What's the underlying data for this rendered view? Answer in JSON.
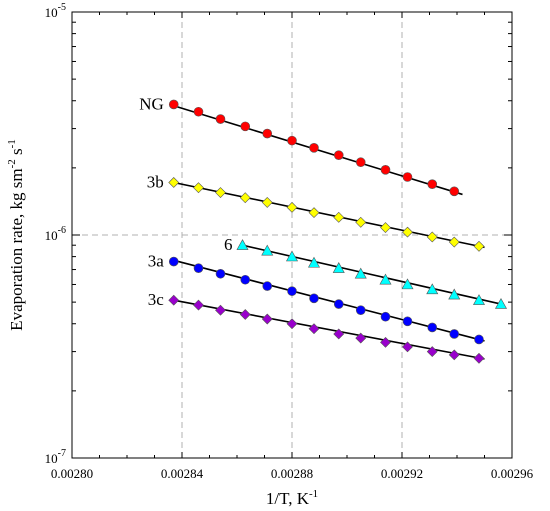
{
  "chart_data": {
    "type": "scatter",
    "xlabel": "1/T, K",
    "xlabel_sup": "-1",
    "ylabel": "Evaporation rate, kg sm",
    "ylabel_sup1": "-2",
    "ylabel_mid": " s",
    "ylabel_sup2": "-1",
    "xlim": [
      0.0028,
      0.00296
    ],
    "ylim": [
      1e-07,
      1e-05
    ],
    "y_scale": "log",
    "grid": true,
    "x_ticks": [
      {
        "value": 0.0028,
        "label": "0.00280"
      },
      {
        "value": 0.00284,
        "label": "0.00284"
      },
      {
        "value": 0.00288,
        "label": "0.00288"
      },
      {
        "value": 0.00292,
        "label": "0.00292"
      },
      {
        "value": 0.00296,
        "label": "0.00296"
      }
    ],
    "y_ticks": [
      {
        "value": 1e-07,
        "base": "10",
        "exp": "-7"
      },
      {
        "value": 1e-06,
        "base": "10",
        "exp": "-6"
      },
      {
        "value": 1e-05,
        "base": "10",
        "exp": "-5"
      }
    ],
    "series": [
      {
        "name": "NG",
        "marker": "circle",
        "color": "#ff0000",
        "x": [
          0.002837,
          0.002846,
          0.002854,
          0.002863,
          0.002871,
          0.00288,
          0.002888,
          0.002897,
          0.002905,
          0.002914,
          0.002922,
          0.002931,
          0.002939
        ],
        "y": [
          3.85e-06,
          3.57e-06,
          3.31e-06,
          3.07e-06,
          2.85e-06,
          2.65e-06,
          2.46e-06,
          2.28e-06,
          2.12e-06,
          1.96e-06,
          1.82e-06,
          1.69e-06,
          1.57e-06
        ],
        "fit": {
          "x": [
            0.002837,
            0.002942
          ],
          "y": [
            3.8e-06,
            1.52e-06
          ]
        }
      },
      {
        "name": "3b",
        "marker": "diamond",
        "color": "#ffff00",
        "x": [
          0.002837,
          0.002846,
          0.002854,
          0.002863,
          0.002871,
          0.00288,
          0.002888,
          0.002897,
          0.002905,
          0.002914,
          0.002922,
          0.002931,
          0.002939,
          0.002948
        ],
        "y": [
          1.72e-06,
          1.63e-06,
          1.55e-06,
          1.47e-06,
          1.4e-06,
          1.33e-06,
          1.26e-06,
          1.2e-06,
          1.14e-06,
          1.08e-06,
          1.03e-06,
          9.8e-07,
          9.3e-07,
          8.9e-07
        ],
        "fit": {
          "x": [
            0.002837,
            0.00295
          ],
          "y": [
            1.72e-06,
            8.8e-07
          ]
        }
      },
      {
        "name": "6",
        "marker": "triangle",
        "color": "#00ffff",
        "x": [
          0.002862,
          0.002871,
          0.00288,
          0.002888,
          0.002897,
          0.002905,
          0.002914,
          0.002922,
          0.002931,
          0.002939,
          0.002948,
          0.002956
        ],
        "y": [
          9e-07,
          8.5e-07,
          8e-07,
          7.5e-07,
          7.1e-07,
          6.7e-07,
          6.3e-07,
          6e-07,
          5.7e-07,
          5.4e-07,
          5.1e-07,
          4.9e-07
        ],
        "fit": {
          "x": [
            0.002862,
            0.002956
          ],
          "y": [
            9e-07,
            4.9e-07
          ]
        }
      },
      {
        "name": "3a",
        "marker": "circle",
        "color": "#0000ff",
        "x": [
          0.002837,
          0.002846,
          0.002854,
          0.002863,
          0.002871,
          0.00288,
          0.002888,
          0.002897,
          0.002905,
          0.002914,
          0.002922,
          0.002931,
          0.002939,
          0.002948
        ],
        "y": [
          7.6e-07,
          7.1e-07,
          6.7e-07,
          6.3e-07,
          5.9e-07,
          5.6e-07,
          5.2e-07,
          4.9e-07,
          4.6e-07,
          4.3e-07,
          4.1e-07,
          3.85e-07,
          3.6e-07,
          3.4e-07
        ],
        "fit": {
          "x": [
            0.002837,
            0.00295
          ],
          "y": [
            7.7e-07,
            3.35e-07
          ]
        }
      },
      {
        "name": "3c",
        "marker": "diamond",
        "color": "#9900cc",
        "x": [
          0.002837,
          0.002846,
          0.002854,
          0.002863,
          0.002871,
          0.00288,
          0.002888,
          0.002897,
          0.002905,
          0.002914,
          0.002922,
          0.002931,
          0.002939,
          0.002948
        ],
        "y": [
          5.1e-07,
          4.85e-07,
          4.6e-07,
          4.4e-07,
          4.2e-07,
          4e-07,
          3.8e-07,
          3.6e-07,
          3.45e-07,
          3.3e-07,
          3.15e-07,
          3e-07,
          2.9e-07,
          2.8e-07
        ],
        "fit": {
          "x": [
            0.002837,
            0.00295
          ],
          "y": [
            5.1e-07,
            2.78e-07
          ]
        }
      }
    ]
  }
}
